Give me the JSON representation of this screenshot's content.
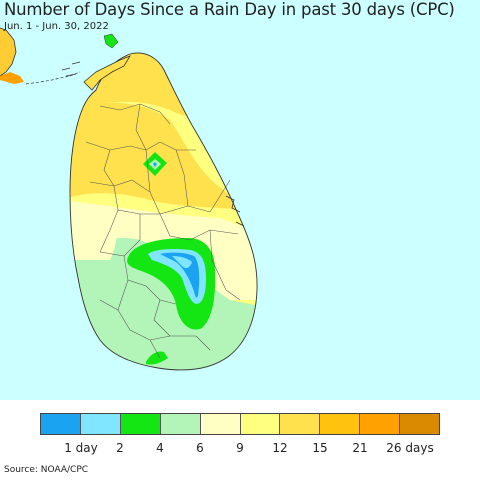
{
  "header": {
    "title": "Number of Days Since a Rain Day in past 30 days (CPC)",
    "subtitle": "Jun. 1 - Jun. 30, 2022"
  },
  "map": {
    "region": "Sri Lanka",
    "colors": {
      "ocean": "#ccffff",
      "mainland_india": "#ffcc33"
    }
  },
  "legend": {
    "colors": [
      "#1aa3f0",
      "#80e6ff",
      "#13e613",
      "#b3f5b8",
      "#ffffc4",
      "#ffff80",
      "#ffe04d",
      "#ffc20e",
      "#ffa100",
      "#d98a00"
    ],
    "labels": [
      "1 day",
      "2",
      "4",
      "6",
      "9",
      "12",
      "15",
      "21",
      "26 days"
    ]
  },
  "footer": {
    "source": "Source: NOAA/CPC"
  }
}
